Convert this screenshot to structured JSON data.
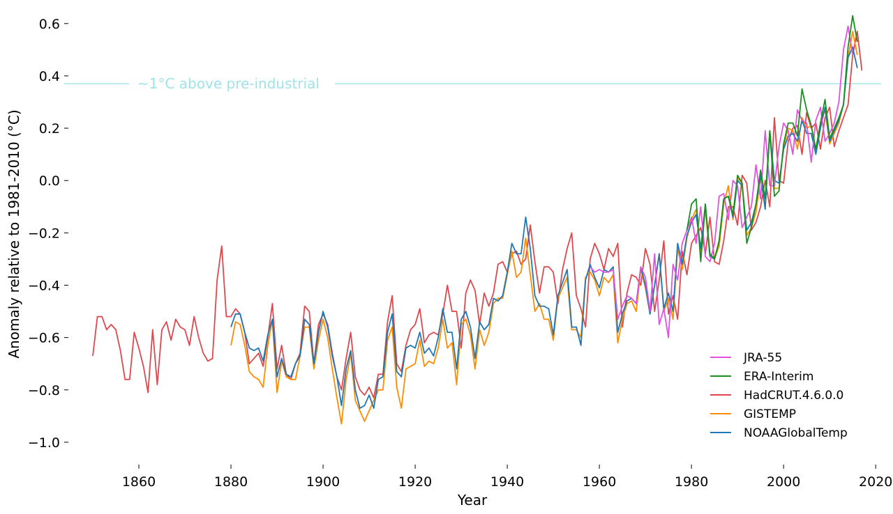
{
  "chart_data": {
    "type": "line",
    "title": "",
    "xlabel": "Year",
    "ylabel": "Anomaly relative to 1981-2010 (°C)",
    "xlim": [
      1845,
      2023
    ],
    "ylim": [
      -1.08,
      0.65
    ],
    "x_ticks": [
      1860,
      1880,
      1900,
      1920,
      1940,
      1960,
      1980,
      2000,
      2020
    ],
    "x_tick_labels": [
      "1860",
      "1880",
      "1900",
      "1920",
      "1940",
      "1960",
      "1980",
      "2000",
      "2020"
    ],
    "y_ticks": [
      0.6,
      0.4,
      0.2,
      0.0,
      -0.2,
      -0.4,
      -0.6,
      -0.8,
      -1.0
    ],
    "y_tick_labels": [
      "0.6",
      "0.4",
      "0.2",
      "0.0",
      "−0.2",
      "−0.4",
      "−0.6",
      "−0.8",
      "−1.0"
    ],
    "grid": false,
    "legend_position": "bottom-right",
    "reference_line": {
      "y": 0.37,
      "label": "~1°C above pre-industrial",
      "color": "#9fe2e8"
    },
    "series": [
      {
        "name": "HadCRUT.4.6.0.0",
        "color": "#e0474c",
        "x_start": 1850,
        "values": [
          -0.67,
          -0.52,
          -0.52,
          -0.57,
          -0.55,
          -0.57,
          -0.65,
          -0.76,
          -0.76,
          -0.58,
          -0.64,
          -0.71,
          -0.81,
          -0.57,
          -0.78,
          -0.57,
          -0.54,
          -0.61,
          -0.53,
          -0.56,
          -0.57,
          -0.63,
          -0.52,
          -0.6,
          -0.66,
          -0.69,
          -0.68,
          -0.38,
          -0.25,
          -0.52,
          -0.52,
          -0.49,
          -0.51,
          -0.58,
          -0.7,
          -0.68,
          -0.66,
          -0.71,
          -0.6,
          -0.47,
          -0.72,
          -0.63,
          -0.74,
          -0.76,
          -0.7,
          -0.66,
          -0.48,
          -0.5,
          -0.7,
          -0.55,
          -0.51,
          -0.55,
          -0.66,
          -0.75,
          -0.8,
          -0.68,
          -0.58,
          -0.75,
          -0.8,
          -0.82,
          -0.79,
          -0.83,
          -0.74,
          -0.74,
          -0.54,
          -0.44,
          -0.7,
          -0.73,
          -0.63,
          -0.57,
          -0.55,
          -0.49,
          -0.62,
          -0.59,
          -0.58,
          -0.59,
          -0.51,
          -0.4,
          -0.5,
          -0.5,
          -0.64,
          -0.43,
          -0.38,
          -0.42,
          -0.55,
          -0.43,
          -0.48,
          -0.43,
          -0.32,
          -0.31,
          -0.35,
          -0.28,
          -0.27,
          -0.32,
          -0.3,
          -0.17,
          -0.31,
          -0.43,
          -0.33,
          -0.33,
          -0.35,
          -0.47,
          -0.34,
          -0.26,
          -0.2,
          -0.44,
          -0.49,
          -0.56,
          -0.3,
          -0.24,
          -0.28,
          -0.34,
          -0.26,
          -0.29,
          -0.24,
          -0.56,
          -0.43,
          -0.36,
          -0.37,
          -0.4,
          -0.26,
          -0.32,
          -0.5,
          -0.38,
          -0.23,
          -0.51,
          -0.44,
          -0.53,
          -0.27,
          -0.36,
          -0.24,
          -0.21,
          -0.18,
          -0.28,
          -0.14,
          -0.31,
          -0.32,
          -0.23,
          -0.1,
          -0.1,
          -0.17,
          0.02,
          -0.01,
          -0.19,
          -0.16,
          -0.1,
          0.0,
          -0.1,
          0.24,
          0.0,
          -0.01,
          0.15,
          0.2,
          0.21,
          0.1,
          0.26,
          0.2,
          0.22,
          0.12,
          0.24,
          0.28,
          0.13,
          0.19,
          0.24,
          0.29,
          0.48,
          0.57,
          0.42
        ]
      },
      {
        "name": "GISTEMP",
        "color": "#ff8c00",
        "x_start": 1880,
        "values": [
          -0.63,
          -0.54,
          -0.55,
          -0.63,
          -0.73,
          -0.75,
          -0.76,
          -0.79,
          -0.63,
          -0.53,
          -0.81,
          -0.69,
          -0.75,
          -0.76,
          -0.76,
          -0.67,
          -0.56,
          -0.56,
          -0.72,
          -0.61,
          -0.53,
          -0.6,
          -0.72,
          -0.83,
          -0.93,
          -0.76,
          -0.66,
          -0.84,
          -0.88,
          -0.92,
          -0.88,
          -0.84,
          -0.8,
          -0.8,
          -0.61,
          -0.56,
          -0.79,
          -0.87,
          -0.72,
          -0.71,
          -0.7,
          -0.61,
          -0.71,
          -0.69,
          -0.7,
          -0.64,
          -0.53,
          -0.64,
          -0.62,
          -0.78,
          -0.55,
          -0.53,
          -0.59,
          -0.72,
          -0.57,
          -0.63,
          -0.58,
          -0.47,
          -0.45,
          -0.45,
          -0.36,
          -0.27,
          -0.37,
          -0.35,
          -0.22,
          -0.36,
          -0.5,
          -0.47,
          -0.53,
          -0.53,
          -0.61,
          -0.45,
          -0.41,
          -0.37,
          -0.57,
          -0.57,
          -0.6,
          -0.37,
          -0.35,
          -0.38,
          -0.44,
          -0.37,
          -0.39,
          -0.36,
          -0.62,
          -0.53,
          -0.47,
          -0.46,
          -0.5,
          -0.34,
          -0.41,
          -0.51,
          -0.4,
          -0.28,
          -0.5,
          -0.45,
          -0.53,
          -0.26,
          -0.34,
          -0.22,
          -0.15,
          -0.11,
          -0.27,
          -0.11,
          -0.29,
          -0.3,
          -0.25,
          -0.09,
          -0.02,
          -0.15,
          0.01,
          -0.01,
          -0.21,
          -0.18,
          -0.12,
          0.01,
          -0.1,
          0.19,
          -0.03,
          -0.03,
          0.13,
          0.2,
          0.19,
          0.12,
          0.24,
          0.2,
          0.21,
          0.11,
          0.22,
          0.27,
          0.14,
          0.18,
          0.22,
          0.29,
          0.47,
          0.57,
          0.48
        ]
      },
      {
        "name": "NOAAGlobalTemp",
        "color": "#1f77b4",
        "x_start": 1880,
        "values": [
          -0.56,
          -0.51,
          -0.51,
          -0.58,
          -0.64,
          -0.65,
          -0.64,
          -0.69,
          -0.59,
          -0.53,
          -0.75,
          -0.68,
          -0.74,
          -0.75,
          -0.7,
          -0.67,
          -0.53,
          -0.55,
          -0.7,
          -0.58,
          -0.5,
          -0.56,
          -0.67,
          -0.75,
          -0.86,
          -0.72,
          -0.65,
          -0.8,
          -0.87,
          -0.86,
          -0.82,
          -0.87,
          -0.76,
          -0.75,
          -0.58,
          -0.51,
          -0.73,
          -0.75,
          -0.64,
          -0.63,
          -0.64,
          -0.58,
          -0.66,
          -0.64,
          -0.67,
          -0.6,
          -0.49,
          -0.58,
          -0.58,
          -0.72,
          -0.53,
          -0.5,
          -0.56,
          -0.68,
          -0.54,
          -0.57,
          -0.55,
          -0.45,
          -0.46,
          -0.44,
          -0.35,
          -0.24,
          -0.28,
          -0.28,
          -0.14,
          -0.26,
          -0.44,
          -0.48,
          -0.48,
          -0.49,
          -0.59,
          -0.44,
          -0.39,
          -0.34,
          -0.56,
          -0.56,
          -0.63,
          -0.38,
          -0.32,
          -0.37,
          -0.41,
          -0.34,
          -0.35,
          -0.33,
          -0.58,
          -0.51,
          -0.46,
          -0.45,
          -0.47,
          -0.33,
          -0.4,
          -0.51,
          -0.4,
          -0.28,
          -0.49,
          -0.43,
          -0.5,
          -0.24,
          -0.32,
          -0.21,
          -0.16,
          -0.13,
          -0.26,
          -0.09,
          -0.29,
          -0.3,
          -0.23,
          -0.07,
          -0.06,
          -0.14,
          0.0,
          -0.02,
          -0.19,
          -0.16,
          -0.09,
          0.02,
          -0.11,
          0.19,
          0.0,
          -0.01,
          0.12,
          0.17,
          0.18,
          0.15,
          0.23,
          0.18,
          0.18,
          0.1,
          0.2,
          0.28,
          0.15,
          0.19,
          0.23,
          0.29,
          0.47,
          0.51,
          0.43
        ]
      },
      {
        "name": "JRA-55",
        "color": "#e052e0",
        "x_start": 1958,
        "values": [
          -0.33,
          -0.35,
          -0.34,
          -0.35,
          -0.35,
          -0.34,
          -0.53,
          -0.48,
          -0.44,
          -0.45,
          -0.47,
          -0.33,
          -0.37,
          -0.5,
          -0.28,
          -0.55,
          -0.49,
          -0.6,
          -0.32,
          -0.38,
          -0.24,
          -0.19,
          -0.14,
          -0.24,
          -0.1,
          -0.29,
          -0.31,
          -0.24,
          -0.06,
          -0.05,
          -0.15,
          0.0,
          -0.02,
          -0.18,
          -0.14,
          -0.1,
          0.06,
          -0.07,
          0.19,
          -0.02,
          -0.02,
          0.13,
          0.22,
          0.19,
          0.1,
          0.27,
          0.23,
          0.22,
          0.07,
          0.23,
          0.28,
          0.15,
          0.18,
          0.22,
          0.3,
          0.5,
          0.59,
          0.48
        ]
      },
      {
        "name": "ERA-Interim",
        "color": "#17901f",
        "x_start": 1979,
        "values": [
          -0.19,
          -0.09,
          -0.07,
          -0.31,
          -0.09,
          -0.28,
          -0.3,
          -0.23,
          -0.07,
          -0.06,
          -0.13,
          0.02,
          -0.01,
          -0.24,
          -0.18,
          -0.09,
          0.04,
          -0.07,
          0.19,
          -0.06,
          -0.04,
          0.14,
          0.22,
          0.22,
          0.17,
          0.35,
          0.27,
          0.21,
          0.12,
          0.22,
          0.31,
          0.16,
          0.2,
          0.24,
          0.29,
          0.51,
          0.63,
          0.53
        ]
      }
    ]
  }
}
